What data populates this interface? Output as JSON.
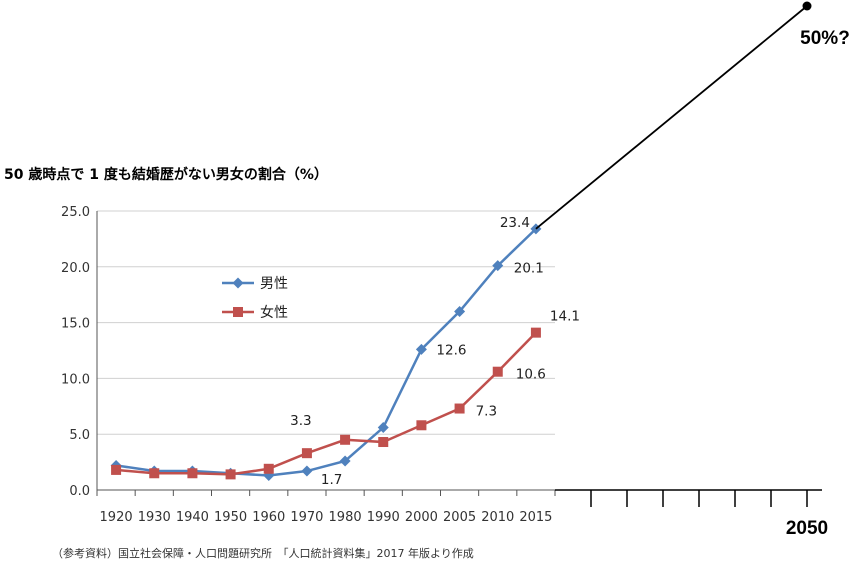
{
  "chart_data": {
    "type": "line",
    "title": "50 歳時点で 1 度も結婚歴がない男女の割合（%）",
    "categories": [
      "1920",
      "1930",
      "1940",
      "1950",
      "1960",
      "1970",
      "1980",
      "1990",
      "2000",
      "2005",
      "2010",
      "2015"
    ],
    "ylim": [
      0,
      25
    ],
    "yticks": [
      "0.0",
      "5.0",
      "10.0",
      "15.0",
      "20.0",
      "25.0"
    ],
    "grid": true,
    "legend_position": "upper-left",
    "series": [
      {
        "name": "男性",
        "color": "#4F81BD",
        "marker": "diamond",
        "values": [
          2.2,
          1.7,
          1.7,
          1.5,
          1.3,
          1.7,
          2.6,
          5.6,
          12.6,
          16.0,
          20.1,
          23.4
        ]
      },
      {
        "name": "女性",
        "color": "#C0504D",
        "marker": "square",
        "values": [
          1.8,
          1.5,
          1.5,
          1.4,
          1.9,
          3.3,
          4.5,
          4.3,
          5.8,
          7.3,
          10.6,
          14.1
        ]
      }
    ],
    "data_labels": [
      {
        "series": 0,
        "index": 5,
        "text": "1.7"
      },
      {
        "series": 0,
        "index": 8,
        "text": "12.6"
      },
      {
        "series": 0,
        "index": 10,
        "text": "20.1"
      },
      {
        "series": 0,
        "index": 11,
        "text": "23.4"
      },
      {
        "series": 1,
        "index": 5,
        "text": "3.3"
      },
      {
        "series": 1,
        "index": 9,
        "text": "7.3"
      },
      {
        "series": 1,
        "index": 10,
        "text": "10.6"
      },
      {
        "series": 1,
        "index": 11,
        "text": "14.1"
      }
    ],
    "extension": {
      "end_category": "2050",
      "end_value_label": "50%?",
      "extra_ticks": 7
    },
    "source": "（参考資料）国立社会保障・人口問題研究所　「人口統計資料集」2017 年版より作成"
  }
}
